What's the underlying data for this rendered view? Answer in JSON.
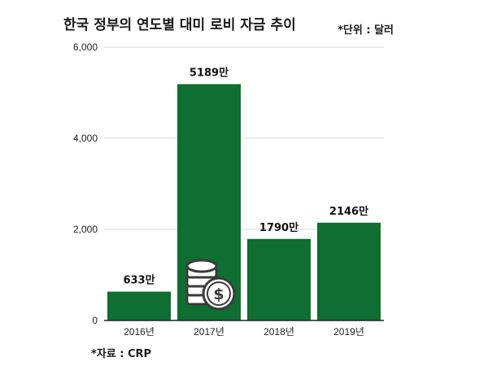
{
  "header": {
    "title": "한국 정부의 연도별 대미 로비 자금 추이",
    "unit_note": "*단위 : 달러"
  },
  "footer": {
    "source": "*자료 : CRP"
  },
  "colors": {
    "bar": "#0f6e32",
    "axis": "#222222",
    "grid": "#d9d9d9",
    "coin_fill": "#ffffff",
    "coin_stroke": "#3a3a3a"
  },
  "icons": {
    "coins": "coin-stack-dollar-icon"
  },
  "chart_data": {
    "type": "bar",
    "categories": [
      "2016년",
      "2017년",
      "2018년",
      "2019년"
    ],
    "values": [
      633,
      5189,
      1790,
      2146
    ],
    "data_labels": [
      "633만",
      "5189만",
      "1790만",
      "2146만"
    ],
    "yticks": [
      0,
      2000,
      4000,
      6000
    ],
    "ytick_labels": [
      "0",
      "2,000",
      "4,000",
      "6,000"
    ],
    "ylim": [
      0,
      6000
    ],
    "grid": true,
    "legend": "none"
  }
}
